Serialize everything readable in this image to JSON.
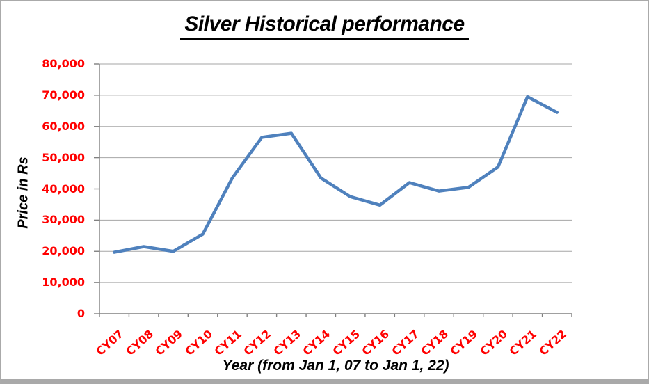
{
  "chart_data": {
    "type": "line",
    "title": "Silver Historical performance",
    "xlabel": "Year (from Jan 1, 07 to Jan 1, 22)",
    "ylabel": "Price in Rs",
    "categories": [
      "CY07",
      "CY08",
      "CY09",
      "CY10",
      "CY11",
      "CY12",
      "CY13",
      "CY14",
      "CY15",
      "CY16",
      "CY17",
      "CY18",
      "CY19",
      "CY20",
      "CY21",
      "CY22"
    ],
    "values": [
      19700,
      21500,
      20000,
      25500,
      43500,
      56500,
      57800,
      43500,
      37500,
      34800,
      42000,
      39300,
      40500,
      47000,
      69500,
      64500
    ],
    "ylim": [
      0,
      80000
    ],
    "ytick_step": 10000,
    "ytick_labels": [
      "0",
      "10,000",
      "20,000",
      "30,000",
      "40,000",
      "50,000",
      "60,000",
      "70,000",
      "80,000"
    ],
    "grid": "horizontal",
    "legend": "none",
    "colors": {
      "line": "#4F81BD",
      "tick_label": "#FF0000",
      "gridline": "#A6A6A6",
      "axis": "#808080",
      "title_text": "#000000"
    }
  }
}
